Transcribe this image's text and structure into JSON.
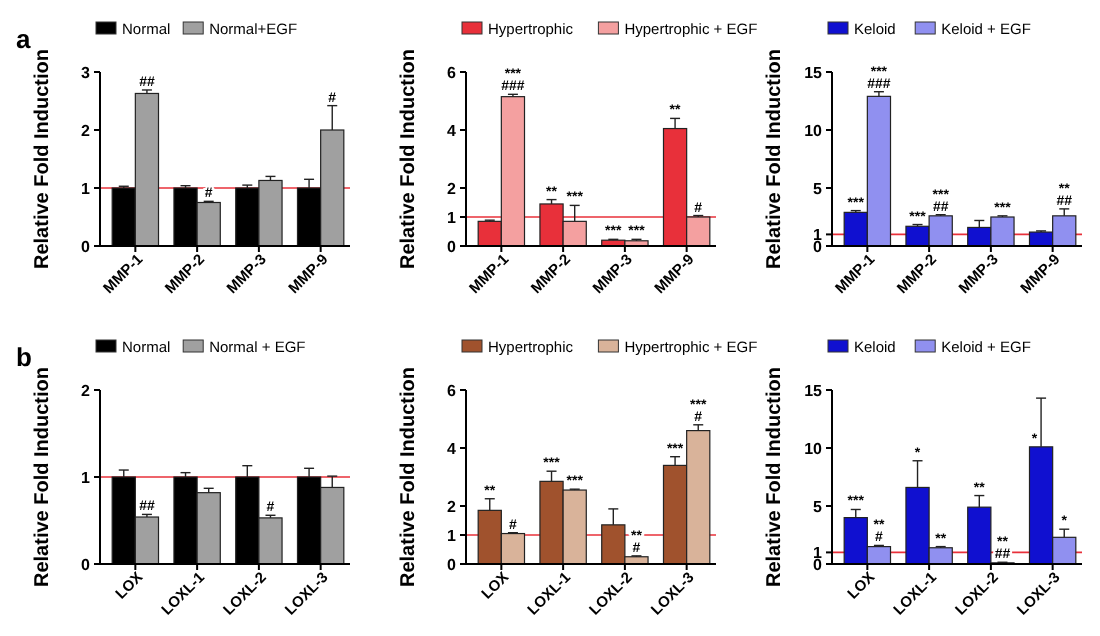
{
  "chart_data": [
    {
      "type": "bar",
      "annotations": [
        "a"
      ],
      "ylabel": "Relative Fold Induction",
      "categories": [
        "MMP-1",
        "MMP-2",
        "MMP-3",
        "MMP-9"
      ],
      "ylim": [
        0,
        3
      ],
      "yticks": [
        0,
        1,
        2,
        3
      ],
      "legend": "top",
      "ref_lines": [
        {
          "axis": "y",
          "value": 1,
          "color": "#e8303a"
        }
      ],
      "series": [
        {
          "name": "Normal",
          "color": "#000000",
          "values": [
            1,
            1,
            1,
            1
          ],
          "errors": [
            0.03,
            0.04,
            0.05,
            0.15
          ]
        },
        {
          "name": "Normal+EGF",
          "color": "#a0a0a0",
          "values": [
            2.63,
            0.75,
            1.13,
            2.0
          ],
          "errors": [
            0.06,
            0.02,
            0.07,
            0.42
          ],
          "value_labels": [
            "##",
            "#",
            null,
            "#"
          ]
        }
      ]
    },
    {
      "type": "bar",
      "ylabel": "Relative Fold Induction",
      "categories": [
        "MMP-1",
        "MMP-2",
        "MMP-3",
        "MMP-9"
      ],
      "ylim": [
        0,
        6
      ],
      "yticks": [
        0,
        1,
        2,
        4,
        6
      ],
      "legend": "top",
      "ref_lines": [
        {
          "axis": "y",
          "value": 1,
          "color": "#e8303a"
        }
      ],
      "series": [
        {
          "name": "Hypertrophic",
          "color": "#e8303a",
          "values": [
            0.85,
            1.45,
            0.2,
            4.05
          ],
          "errors": [
            0.04,
            0.15,
            0.03,
            0.35
          ],
          "value_labels": [
            null,
            "**",
            "***",
            "**"
          ]
        },
        {
          "name": "Hypertrophic + EGF",
          "color": "#f4a0a0",
          "values": [
            5.15,
            0.85,
            0.18,
            1.0
          ],
          "errors": [
            0.08,
            0.55,
            0.05,
            0.05
          ],
          "value_labels": [
            "***\n###",
            "***",
            "***",
            "#"
          ]
        }
      ]
    },
    {
      "type": "bar",
      "ylabel": "Relative Fold Induction",
      "categories": [
        "MMP-1",
        "MMP-2",
        "MMP-3",
        "MMP-9"
      ],
      "ylim": [
        0,
        15
      ],
      "yticks": [
        0,
        1,
        5,
        10,
        15
      ],
      "legend": "top",
      "ref_lines": [
        {
          "axis": "y",
          "value": 1,
          "color": "#e8303a"
        }
      ],
      "series": [
        {
          "name": "Keloid",
          "color": "#1010d0",
          "values": [
            2.9,
            1.7,
            1.6,
            1.2
          ],
          "errors": [
            0.15,
            0.15,
            0.6,
            0.1
          ],
          "value_labels": [
            "***",
            "***",
            null,
            null
          ]
        },
        {
          "name": "Keloid + EGF",
          "color": "#9090f0",
          "values": [
            12.9,
            2.6,
            2.5,
            2.6
          ],
          "errors": [
            0.4,
            0.1,
            0.1,
            0.6
          ],
          "value_labels": [
            "***\n###",
            "***\n##",
            "***",
            "**\n##"
          ]
        }
      ]
    },
    {
      "type": "bar",
      "annotations": [
        "b"
      ],
      "ylabel": "Relative Fold Induction",
      "categories": [
        "LOX",
        "LOXL-1",
        "LOXL-2",
        "LOXL-3"
      ],
      "ylim": [
        0,
        2
      ],
      "yticks": [
        0,
        1,
        2
      ],
      "legend": "top",
      "ref_lines": [
        {
          "axis": "y",
          "value": 1,
          "color": "#e8303a"
        }
      ],
      "series": [
        {
          "name": "Normal",
          "color": "#000000",
          "values": [
            1,
            1,
            1,
            1
          ],
          "errors": [
            0.08,
            0.05,
            0.13,
            0.1
          ]
        },
        {
          "name": "Normal + EGF",
          "color": "#a0a0a0",
          "values": [
            0.54,
            0.82,
            0.53,
            0.88
          ],
          "errors": [
            0.03,
            0.05,
            0.03,
            0.13
          ],
          "value_labels": [
            "##",
            null,
            "#",
            null
          ]
        }
      ]
    },
    {
      "type": "bar",
      "ylabel": "Relative Fold Induction",
      "categories": [
        "LOX",
        "LOXL-1",
        "LOXL-2",
        "LOXL-3"
      ],
      "ylim": [
        0,
        6
      ],
      "yticks": [
        0,
        1,
        2,
        4,
        6
      ],
      "legend": "top",
      "ref_lines": [
        {
          "axis": "y",
          "value": 1,
          "color": "#e8303a"
        }
      ],
      "series": [
        {
          "name": "Hypertrophic",
          "color": "#a0522d",
          "values": [
            1.85,
            2.85,
            1.35,
            3.4
          ],
          "errors": [
            0.4,
            0.35,
            0.55,
            0.3
          ],
          "value_labels": [
            "**",
            "***",
            null,
            "***"
          ]
        },
        {
          "name": "Hypertrophic + EGF",
          "color": "#d9b39a",
          "values": [
            1.05,
            2.55,
            0.25,
            4.6
          ],
          "errors": [
            0.03,
            0.03,
            0.03,
            0.2
          ],
          "value_labels": [
            "#",
            "***",
            "**\n#",
            "***\n#"
          ]
        }
      ]
    },
    {
      "type": "bar",
      "ylabel": "Relative Fold Induction",
      "categories": [
        "LOX",
        "LOXL-1",
        "LOXL-2",
        "LOXL-3"
      ],
      "ylim": [
        0,
        15
      ],
      "yticks": [
        0,
        1,
        5,
        10,
        15
      ],
      "legend": "top",
      "ref_lines": [
        {
          "axis": "y",
          "value": 1,
          "color": "#e8303a"
        }
      ],
      "series": [
        {
          "name": "Keloid",
          "color": "#1010d0",
          "values": [
            4.0,
            6.6,
            4.9,
            10.1
          ],
          "errors": [
            0.7,
            2.3,
            1.0,
            4.2
          ],
          "value_labels": [
            "***",
            "*",
            "**",
            "*"
          ]
        },
        {
          "name": "Keloid + EGF",
          "color": "#9090f0",
          "values": [
            1.5,
            1.4,
            0.1,
            2.3
          ],
          "errors": [
            0.1,
            0.1,
            0.05,
            0.7
          ],
          "value_labels": [
            "**\n#",
            "**",
            "**\n##",
            "*"
          ]
        }
      ]
    }
  ]
}
